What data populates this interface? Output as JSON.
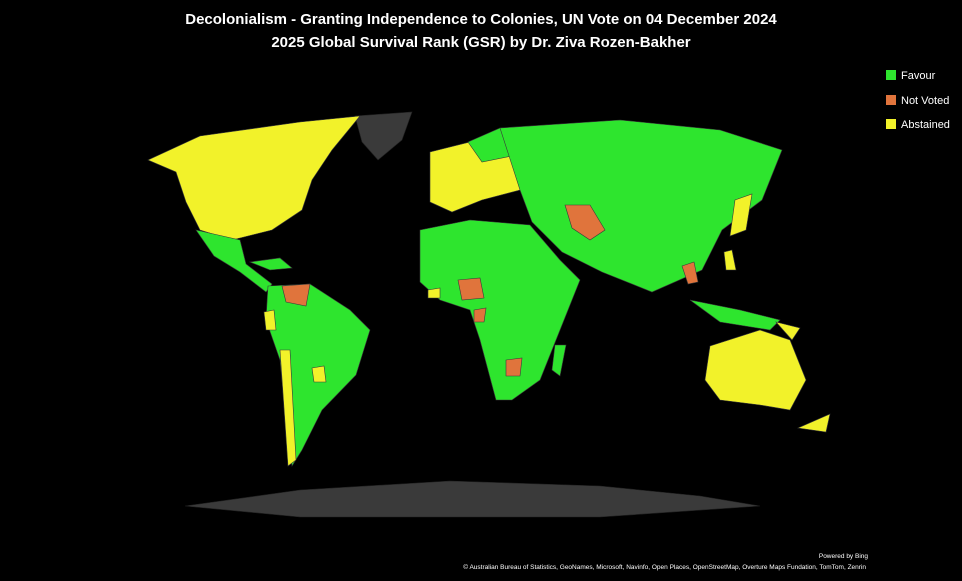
{
  "header": {
    "title_line1": "Decolonialism - Granting Independence to Colonies, UN Vote on 04 December 2024",
    "title_line2": "2025 Global Survival Rank (GSR) by Dr. Ziva Rozen-Bakher"
  },
  "legend": {
    "items": [
      {
        "label": "Favour",
        "color": "#2ee52e"
      },
      {
        "label": "Not Voted",
        "color": "#e0743c"
      },
      {
        "label": "Abstained",
        "color": "#f2f22a"
      }
    ]
  },
  "footer": {
    "powered_by": "Powered by Bing",
    "attribution": "© Australian Bureau of Statistics, GeoNames, Microsoft, Navinfo, Open Places, OpenStreetMap, Overture Maps Fundation, TomTom, Zenrin"
  }
}
